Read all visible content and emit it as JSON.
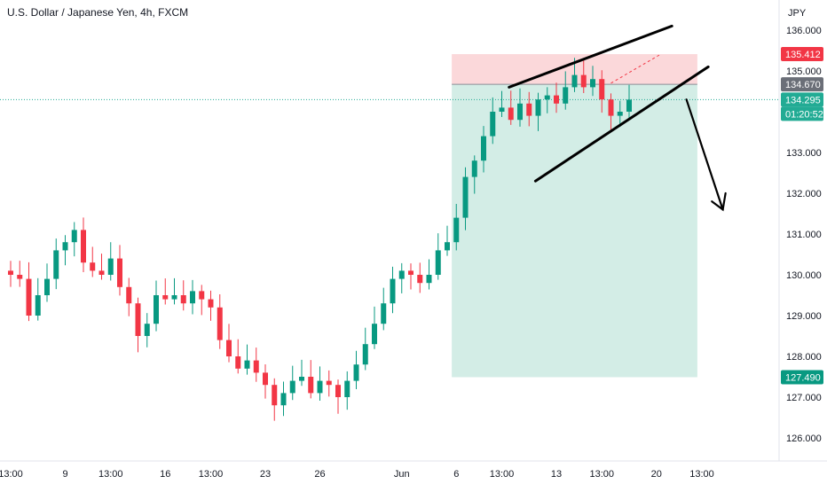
{
  "chart_data": {
    "type": "candlestick",
    "title": "U.S. Dollar / Japanese Yen, 4h, FXCM",
    "currency": "JPY",
    "y_range": [
      125.5,
      136.8
    ],
    "x_tick_labels": [
      {
        "label": "13:00",
        "bar": 0
      },
      {
        "label": "9",
        "bar": 6
      },
      {
        "label": "13:00",
        "bar": 11
      },
      {
        "label": "16",
        "bar": 17
      },
      {
        "label": "13:00",
        "bar": 22
      },
      {
        "label": "23",
        "bar": 28
      },
      {
        "label": "26",
        "bar": 34
      },
      {
        "label": "Jun",
        "bar": 43
      },
      {
        "label": "6",
        "bar": 49
      },
      {
        "label": "13:00",
        "bar": 54
      },
      {
        "label": "13",
        "bar": 60
      },
      {
        "label": "13:00",
        "bar": 65
      },
      {
        "label": "20",
        "bar": 71
      },
      {
        "label": "13:00",
        "bar": 76
      }
    ],
    "y_ticks": [
      "126.000",
      "127.000",
      "128.000",
      "129.000",
      "130.000",
      "131.000",
      "132.000",
      "133.000",
      "134.000",
      "135.000",
      "136.000"
    ],
    "y_tick_values": [
      126,
      127,
      128,
      129,
      130,
      131,
      132,
      133,
      134,
      135,
      136
    ],
    "price_labels": [
      {
        "text": "135.412",
        "value": 135.412,
        "color": "#f23645"
      },
      {
        "text": "134.670",
        "value": 134.67,
        "color": "#6b6f78"
      },
      {
        "text": "134.295",
        "value": 134.295,
        "color": "#22ab94"
      },
      {
        "text": "01:20:52",
        "value": 134.295,
        "color": "#22ab94"
      },
      {
        "text": "127.490",
        "value": 127.49,
        "color": "#089981"
      }
    ],
    "position": {
      "entry": 134.67,
      "stop": 135.412,
      "target": 127.49,
      "start_bar": 48.5,
      "end_bar": 75.5
    },
    "colors": {
      "up": "#089981",
      "down": "#f23645",
      "profit_zone": "#d3ede6",
      "loss_zone": "#fbd8da"
    },
    "closes": [
      130.0,
      129.9,
      129.0,
      129.5,
      129.9,
      130.6,
      130.8,
      131.1,
      130.3,
      130.1,
      130.0,
      130.4,
      129.7,
      129.3,
      128.5,
      128.8,
      129.5,
      129.4,
      129.5,
      129.3,
      129.6,
      129.4,
      129.2,
      128.4,
      128.0,
      127.7,
      127.9,
      127.6,
      127.3,
      126.8,
      127.1,
      127.4,
      127.5,
      127.1,
      127.4,
      127.3,
      127.0,
      127.4,
      127.8,
      128.3,
      128.8,
      129.3,
      129.9,
      130.1,
      130.0,
      129.8,
      130.0,
      130.6,
      130.8,
      131.4,
      132.4,
      132.8,
      133.4,
      134.0,
      134.1,
      133.8,
      134.2,
      133.9,
      134.3,
      134.4,
      134.2,
      134.6,
      134.9,
      134.6,
      134.8,
      134.3,
      133.9,
      134.0,
      134.295
    ]
  }
}
